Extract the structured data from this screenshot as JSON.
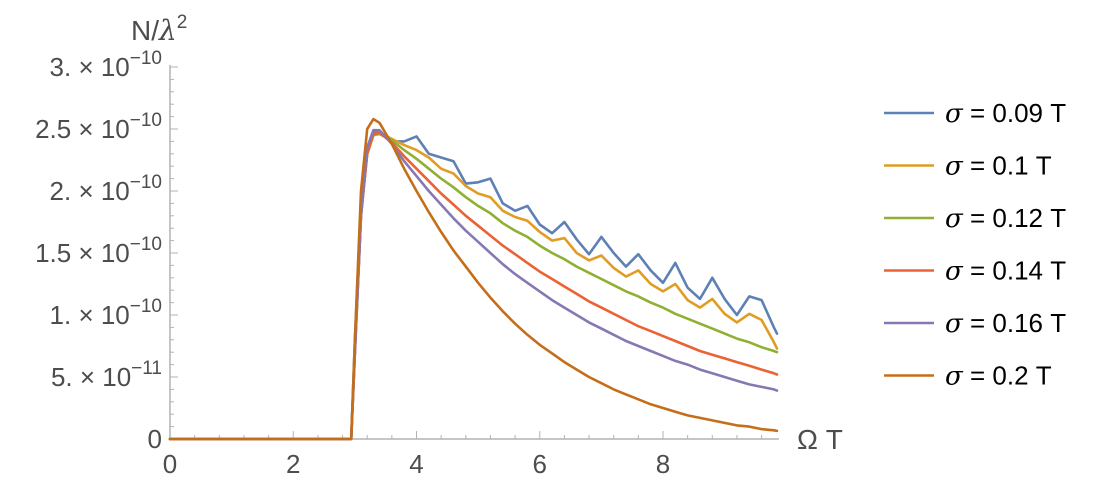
{
  "chart_data": {
    "type": "line",
    "xlabel": "Ω T",
    "ylabel": "N/λ²",
    "ylabel_parts": {
      "base": "N/",
      "greek": "λ",
      "sup": "2"
    },
    "xlim": [
      0,
      9.85
    ],
    "ylim": [
      0,
      3e-10
    ],
    "x_ticks": [
      {
        "value": 0,
        "label": "0"
      },
      {
        "value": 2,
        "label": "2"
      },
      {
        "value": 4,
        "label": "4"
      },
      {
        "value": 6,
        "label": "6"
      },
      {
        "value": 8,
        "label": "8"
      }
    ],
    "y_ticks": [
      {
        "value": 0,
        "label": "0",
        "mant": "",
        "exp": ""
      },
      {
        "value": 5e-11,
        "label": "5. × 10⁻¹¹",
        "mant": "5. × 10",
        "exp": "−11"
      },
      {
        "value": 1e-10,
        "label": "1. × 10⁻¹⁰",
        "mant": "1. × 10",
        "exp": "−10"
      },
      {
        "value": 1.5e-10,
        "label": "1.5 × 10⁻¹⁰",
        "mant": "1.5 × 10",
        "exp": "−10"
      },
      {
        "value": 2e-10,
        "label": "2. × 10⁻¹⁰",
        "mant": "2. × 10",
        "exp": "−10"
      },
      {
        "value": 2.5e-10,
        "label": "2.5 × 10⁻¹⁰",
        "mant": "2.5 × 10",
        "exp": "−10"
      },
      {
        "value": 3e-10,
        "label": "3. × 10⁻¹⁰",
        "mant": "3. × 10",
        "exp": "−10"
      }
    ],
    "grid": false,
    "legend_position": "right",
    "series": [
      {
        "name": "σ = 0.09 T",
        "greek": "σ",
        "rest": " = 0.09 T",
        "color": "#5e81b5",
        "x": [
          0,
          2.94,
          3.0,
          3.1,
          3.2,
          3.3,
          3.4,
          3.6,
          3.8,
          4.0,
          4.2,
          4.4,
          4.6,
          4.8,
          5.0,
          5.2,
          5.4,
          5.6,
          5.8,
          6.0,
          6.2,
          6.4,
          6.6,
          6.8,
          7.0,
          7.2,
          7.4,
          7.6,
          7.8,
          8.0,
          8.2,
          8.4,
          8.6,
          8.8,
          9.0,
          9.2,
          9.4,
          9.6,
          9.8,
          9.85
        ],
        "y": [
          0,
          0,
          8e-11,
          1.9e-10,
          2.35e-10,
          2.47e-10,
          2.48e-10,
          2.4e-10,
          2.4e-10,
          2.44e-10,
          2.3e-10,
          2.27e-10,
          2.24e-10,
          2.06e-10,
          2.07e-10,
          2.1e-10,
          1.9e-10,
          1.84e-10,
          1.88e-10,
          1.73e-10,
          1.66e-10,
          1.75e-10,
          1.61e-10,
          1.49e-10,
          1.63e-10,
          1.5e-10,
          1.39e-10,
          1.49e-10,
          1.36e-10,
          1.26e-10,
          1.42e-10,
          1.22e-10,
          1.13e-10,
          1.3e-10,
          1.13e-10,
          1e-10,
          1.15e-10,
          1.12e-10,
          9e-11,
          8.5e-11
        ]
      },
      {
        "name": "σ = 0.1 T",
        "greek": "σ",
        "rest": " = 0.1 T",
        "color": "#e19c24",
        "x": [
          0,
          2.94,
          3.0,
          3.1,
          3.2,
          3.3,
          3.4,
          3.6,
          3.8,
          4.0,
          4.2,
          4.4,
          4.6,
          4.8,
          5.0,
          5.2,
          5.4,
          5.6,
          5.8,
          6.0,
          6.2,
          6.4,
          6.6,
          6.8,
          7.0,
          7.2,
          7.4,
          7.6,
          7.8,
          8.0,
          8.2,
          8.4,
          8.6,
          8.8,
          9.0,
          9.2,
          9.4,
          9.6,
          9.8,
          9.85
        ],
        "y": [
          0,
          0,
          7e-11,
          1.8e-10,
          2.3e-10,
          2.45e-10,
          2.47e-10,
          2.42e-10,
          2.37e-10,
          2.33e-10,
          2.27e-10,
          2.18e-10,
          2.14e-10,
          2.04e-10,
          1.98e-10,
          1.95e-10,
          1.84e-10,
          1.79e-10,
          1.76e-10,
          1.67e-10,
          1.6e-10,
          1.62e-10,
          1.5e-10,
          1.44e-10,
          1.48e-10,
          1.38e-10,
          1.31e-10,
          1.36e-10,
          1.25e-10,
          1.19e-10,
          1.25e-10,
          1.12e-10,
          1.06e-10,
          1.13e-10,
          1.01e-10,
          9.4e-11,
          1.01e-10,
          9.6e-11,
          7.8e-11,
          7.3e-11
        ]
      },
      {
        "name": "σ = 0.12 T",
        "greek": "σ",
        "rest": " = 0.12 T",
        "color": "#8fb032",
        "x": [
          0,
          2.94,
          3.0,
          3.1,
          3.2,
          3.3,
          3.4,
          3.6,
          3.8,
          4.0,
          4.2,
          4.4,
          4.6,
          4.8,
          5.0,
          5.2,
          5.4,
          5.6,
          5.8,
          6.0,
          6.2,
          6.4,
          6.6,
          6.8,
          7.0,
          7.2,
          7.4,
          7.6,
          7.8,
          8.0,
          8.2,
          8.4,
          8.6,
          8.8,
          9.0,
          9.2,
          9.4,
          9.6,
          9.8,
          9.85
        ],
        "y": [
          0,
          0,
          7e-11,
          1.8e-10,
          2.3e-10,
          2.45e-10,
          2.46e-10,
          2.41e-10,
          2.33e-10,
          2.26e-10,
          2.18e-10,
          2.1e-10,
          2.03e-10,
          1.95e-10,
          1.88e-10,
          1.82e-10,
          1.74e-10,
          1.68e-10,
          1.63e-10,
          1.56e-10,
          1.5e-10,
          1.45e-10,
          1.39e-10,
          1.34e-10,
          1.29e-10,
          1.24e-10,
          1.19e-10,
          1.15e-10,
          1.1e-10,
          1.06e-10,
          1.01e-10,
          9.7e-11,
          9.3e-11,
          8.9e-11,
          8.5e-11,
          8.1e-11,
          7.8e-11,
          7.4e-11,
          7.1e-11,
          7e-11
        ]
      },
      {
        "name": "σ = 0.14 T",
        "greek": "σ",
        "rest": " = 0.14 T",
        "color": "#eb6235",
        "x": [
          0,
          2.94,
          3.0,
          3.1,
          3.2,
          3.3,
          3.4,
          3.6,
          3.8,
          4.0,
          4.2,
          4.4,
          4.6,
          4.8,
          5.0,
          5.2,
          5.4,
          5.6,
          5.8,
          6.0,
          6.2,
          6.4,
          6.6,
          6.8,
          7.0,
          7.2,
          7.4,
          7.6,
          7.8,
          8.0,
          8.2,
          8.4,
          8.6,
          8.8,
          9.0,
          9.2,
          9.4,
          9.6,
          9.8,
          9.85
        ],
        "y": [
          0,
          0,
          7e-11,
          1.8e-10,
          2.3e-10,
          2.46e-10,
          2.47e-10,
          2.39e-10,
          2.28e-10,
          2.18e-10,
          2.08e-10,
          1.98e-10,
          1.89e-10,
          1.8e-10,
          1.72e-10,
          1.64e-10,
          1.56e-10,
          1.49e-10,
          1.42e-10,
          1.35e-10,
          1.29e-10,
          1.23e-10,
          1.17e-10,
          1.11e-10,
          1.06e-10,
          1.01e-10,
          9.6e-11,
          9.1e-11,
          8.7e-11,
          8.3e-11,
          7.9e-11,
          7.5e-11,
          7.1e-11,
          6.8e-11,
          6.5e-11,
          6.2e-11,
          5.9e-11,
          5.6e-11,
          5.3e-11,
          5.2e-11
        ]
      },
      {
        "name": "σ = 0.16 T",
        "greek": "σ",
        "rest": " = 0.16 T",
        "color": "#8778b3",
        "x": [
          0,
          2.94,
          3.0,
          3.1,
          3.2,
          3.3,
          3.4,
          3.6,
          3.8,
          4.0,
          4.2,
          4.4,
          4.6,
          4.8,
          5.0,
          5.2,
          5.4,
          5.6,
          5.8,
          6.0,
          6.2,
          6.4,
          6.6,
          6.8,
          7.0,
          7.2,
          7.4,
          7.6,
          7.8,
          8.0,
          8.2,
          8.4,
          8.6,
          8.8,
          9.0,
          9.2,
          9.4,
          9.6,
          9.8,
          9.85
        ],
        "y": [
          0,
          0,
          7e-11,
          1.8e-10,
          2.35e-10,
          2.49e-10,
          2.49e-10,
          2.38e-10,
          2.24e-10,
          2.12e-10,
          2e-10,
          1.89e-10,
          1.78e-10,
          1.68e-10,
          1.59e-10,
          1.5e-10,
          1.41e-10,
          1.33e-10,
          1.26e-10,
          1.19e-10,
          1.12e-10,
          1.06e-10,
          1e-10,
          9.4e-11,
          8.9e-11,
          8.4e-11,
          7.9e-11,
          7.5e-11,
          7.1e-11,
          6.7e-11,
          6.3e-11,
          6e-11,
          5.6e-11,
          5.3e-11,
          5e-11,
          4.7e-11,
          4.4e-11,
          4.2e-11,
          4e-11,
          3.9e-11
        ]
      },
      {
        "name": "σ = 0.2 T",
        "greek": "σ",
        "rest": " = 0.2 T",
        "color": "#c56e1a",
        "x": [
          0,
          2.94,
          3.0,
          3.1,
          3.2,
          3.3,
          3.4,
          3.6,
          3.8,
          4.0,
          4.2,
          4.4,
          4.6,
          4.8,
          5.0,
          5.2,
          5.4,
          5.6,
          5.8,
          6.0,
          6.2,
          6.4,
          6.6,
          6.8,
          7.0,
          7.2,
          7.4,
          7.6,
          7.8,
          8.0,
          8.2,
          8.4,
          8.6,
          8.8,
          9.0,
          9.2,
          9.4,
          9.6,
          9.8,
          9.85
        ],
        "y": [
          0,
          0,
          8e-11,
          2e-10,
          2.5e-10,
          2.58e-10,
          2.55e-10,
          2.38e-10,
          2.18e-10,
          2e-10,
          1.83e-10,
          1.67e-10,
          1.52e-10,
          1.39e-10,
          1.26e-10,
          1.14e-10,
          1.03e-10,
          9.3e-11,
          8.4e-11,
          7.6e-11,
          6.9e-11,
          6.2e-11,
          5.6e-11,
          5e-11,
          4.5e-11,
          4e-11,
          3.6e-11,
          3.2e-11,
          2.8e-11,
          2.5e-11,
          2.2e-11,
          1.9e-11,
          1.7e-11,
          1.5e-11,
          1.3e-11,
          1.1e-11,
          1e-11,
          8e-12,
          7e-12,
          6.5e-12
        ]
      }
    ]
  }
}
